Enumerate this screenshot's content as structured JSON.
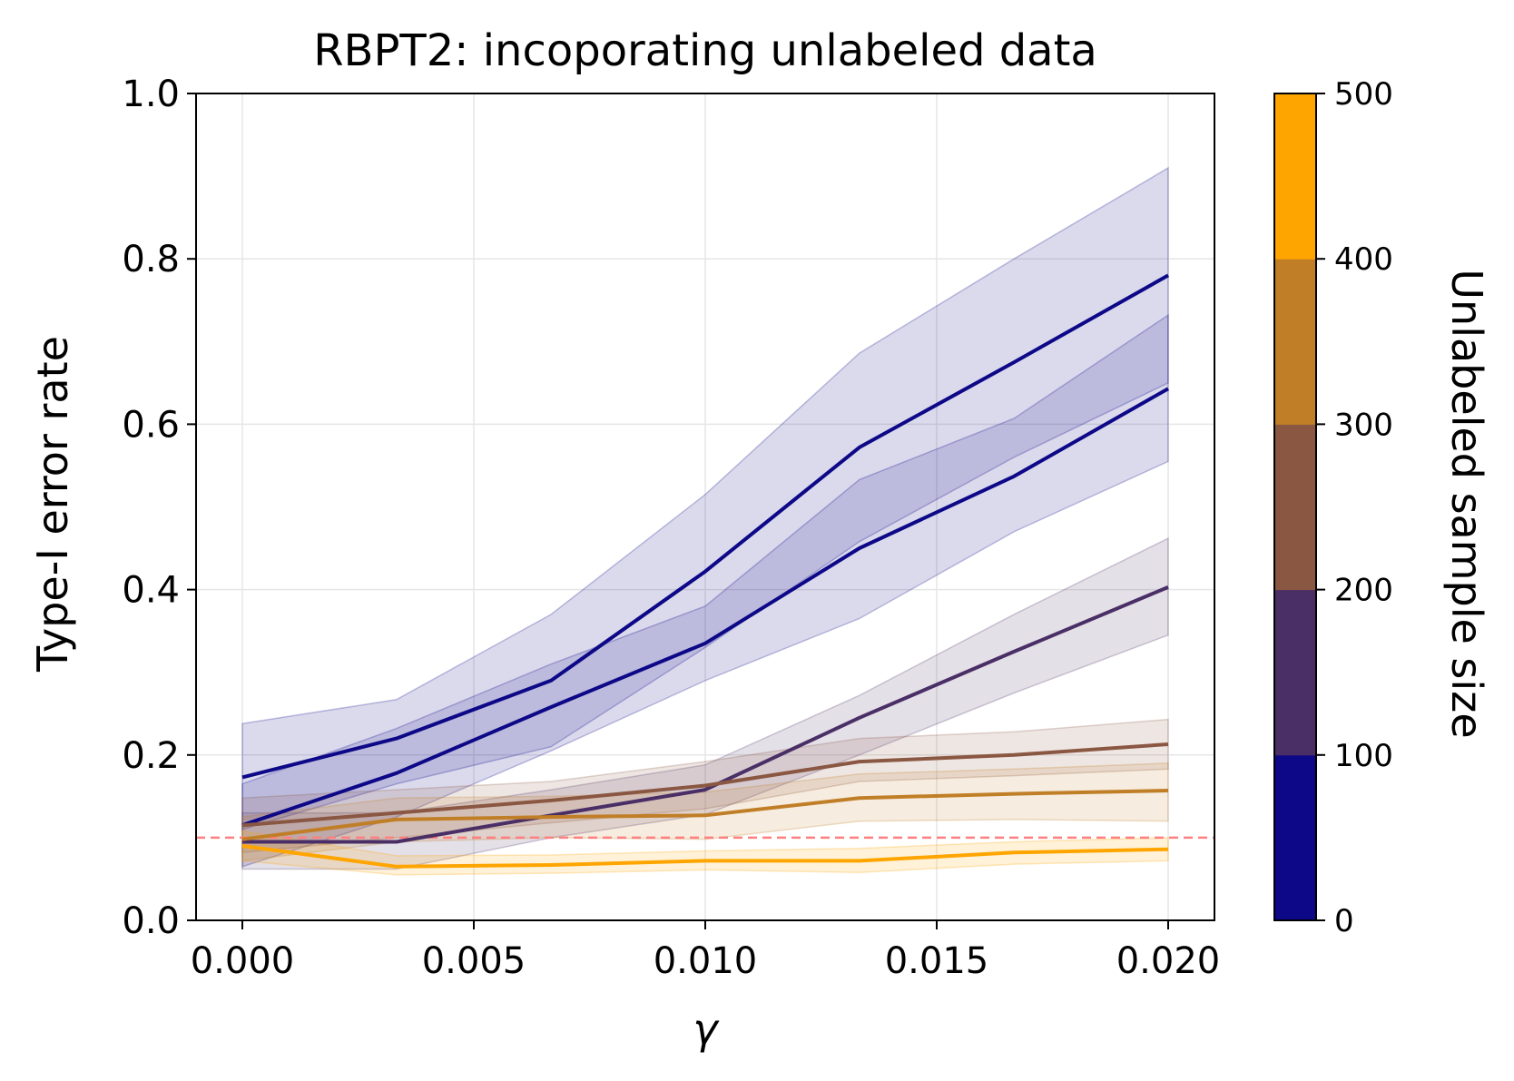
{
  "chart_data": {
    "type": "line",
    "title": "RBPT2: incoporating unlabeled data",
    "xlabel": "γ",
    "ylabel": "Type-I error rate",
    "xlim": [
      -0.001,
      0.021
    ],
    "ylim": [
      0.0,
      1.0
    ],
    "xticks": [
      "0.000",
      "0.005",
      "0.010",
      "0.015",
      "0.020"
    ],
    "xtick_values": [
      0.0,
      0.005,
      0.01,
      0.015,
      0.02
    ],
    "yticks": [
      "0.0",
      "0.2",
      "0.4",
      "0.6",
      "0.8",
      "1.0"
    ],
    "ytick_values": [
      0.0,
      0.2,
      0.4,
      0.6,
      0.8,
      1.0
    ],
    "grid": true,
    "x": [
      0.0,
      0.00333,
      0.00667,
      0.01,
      0.01333,
      0.01667,
      0.02
    ],
    "reference_line": {
      "y": 0.1,
      "color": "#ff8080",
      "style": "dashed"
    },
    "series": [
      {
        "color": "#0d0887",
        "values": [
          0.173,
          0.22,
          0.29,
          0.422,
          0.572,
          0.675,
          0.78
        ],
        "lower": [
          0.11,
          0.165,
          0.21,
          0.33,
          0.458,
          0.56,
          0.65
        ],
        "upper": [
          0.238,
          0.267,
          0.37,
          0.515,
          0.686,
          0.8,
          0.91
        ]
      },
      {
        "color": "#0d0887",
        "values": [
          0.115,
          0.178,
          0.258,
          0.335,
          0.45,
          0.537,
          0.643
        ],
        "lower": [
          0.065,
          0.125,
          0.205,
          0.29,
          0.365,
          0.47,
          0.555
        ],
        "upper": [
          0.165,
          0.232,
          0.31,
          0.38,
          0.533,
          0.607,
          0.732
        ]
      },
      {
        "color": "#4a2f66",
        "values": [
          0.095,
          0.095,
          0.127,
          0.158,
          0.245,
          0.325,
          0.403
        ],
        "lower": [
          0.062,
          0.062,
          0.1,
          0.128,
          0.2,
          0.275,
          0.345
        ],
        "upper": [
          0.13,
          0.13,
          0.158,
          0.188,
          0.272,
          0.37,
          0.462
        ]
      },
      {
        "color": "#8a5742",
        "values": [
          0.115,
          0.13,
          0.145,
          0.163,
          0.192,
          0.2,
          0.213
        ],
        "lower": [
          0.082,
          0.1,
          0.118,
          0.135,
          0.168,
          0.175,
          0.183
        ],
        "upper": [
          0.148,
          0.158,
          0.168,
          0.192,
          0.22,
          0.228,
          0.243
        ]
      },
      {
        "color": "#c07e27",
        "values": [
          0.098,
          0.122,
          0.125,
          0.127,
          0.148,
          0.153,
          0.157
        ],
        "lower": [
          0.072,
          0.095,
          0.1,
          0.098,
          0.12,
          0.122,
          0.12
        ],
        "upper": [
          0.125,
          0.148,
          0.15,
          0.155,
          0.177,
          0.183,
          0.19
        ]
      },
      {
        "color": "#ffa500",
        "values": [
          0.09,
          0.065,
          0.067,
          0.072,
          0.072,
          0.082,
          0.086
        ],
        "lower": [
          0.072,
          0.055,
          0.057,
          0.061,
          0.058,
          0.068,
          0.072
        ],
        "upper": [
          0.108,
          0.078,
          0.079,
          0.084,
          0.087,
          0.095,
          0.1
        ]
      }
    ],
    "colorbar": {
      "label": "Unlabeled sample size",
      "ticks": [
        "0",
        "100",
        "200",
        "300",
        "400",
        "500"
      ],
      "tick_values": [
        0,
        100,
        200,
        300,
        400,
        500
      ],
      "segments": [
        {
          "from": 0,
          "to": 100,
          "color": "#0d0887"
        },
        {
          "from": 100,
          "to": 200,
          "color": "#4a2f66"
        },
        {
          "from": 200,
          "to": 300,
          "color": "#8a5742"
        },
        {
          "from": 300,
          "to": 400,
          "color": "#c07e27"
        },
        {
          "from": 400,
          "to": 500,
          "color": "#ffa500"
        }
      ]
    }
  }
}
